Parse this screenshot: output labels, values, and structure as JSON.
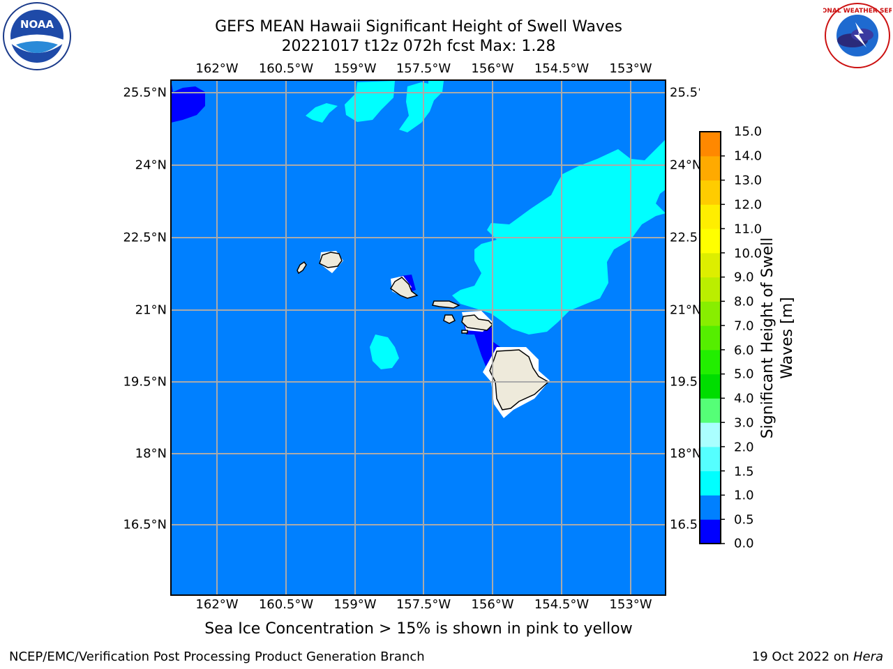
{
  "header": {
    "title_line1": "GEFS MEAN Hawaii Significant Height of Swell Waves",
    "title_line2": "20221017 t12z 072h fcst   Max: 1.28"
  },
  "map": {
    "lon_ticks": [
      "162°W",
      "160.5°W",
      "159°W",
      "157.5°W",
      "156°W",
      "154.5°W",
      "153°W"
    ],
    "lat_ticks": [
      "25.5°N",
      "24°N",
      "22.5°N",
      "21°N",
      "19.5°N",
      "18°N",
      "16.5°N"
    ],
    "ocean_color": "#0080ff",
    "land_color": "#eeeadb",
    "colors": {
      "band_0_0.5": "#0000ff",
      "band_0.5_1.0": "#0080ff",
      "band_1.0_1.5": "#00ffff"
    }
  },
  "colorbar": {
    "label": "Significant Height of Swell Waves [m]",
    "ticks": [
      "15.0",
      "14.0",
      "13.0",
      "12.0",
      "11.0",
      "10.0",
      "9.0",
      "8.0",
      "7.0",
      "6.0",
      "5.0",
      "4.0",
      "3.0",
      "2.0",
      "1.5",
      "1.0",
      "0.5",
      "0.0"
    ],
    "colors": [
      "#0000ff",
      "#0080ff",
      "#00ffff",
      "#55ffff",
      "#aaffff",
      "#55ff77",
      "#00dd00",
      "#22ee00",
      "#55ee00",
      "#88ee00",
      "#bbee00",
      "#ddee00",
      "#ffff00",
      "#ffee00",
      "#ffcc00",
      "#ffaa00",
      "#ff8800",
      "#ff6600",
      "#ff4400",
      "#ff2200",
      "#ff0000"
    ]
  },
  "note": "Sea Ice Concentration > 15% is shown in pink to yellow",
  "footer": {
    "left": "NCEP/EMC/Verification Post Processing Product Generation Branch",
    "right_date": "19 Oct 2022 on ",
    "right_host": "Hera"
  },
  "logos": {
    "noaa_text": "NOAA",
    "nws_text": "NATIONAL WEATHER SERVICE"
  }
}
